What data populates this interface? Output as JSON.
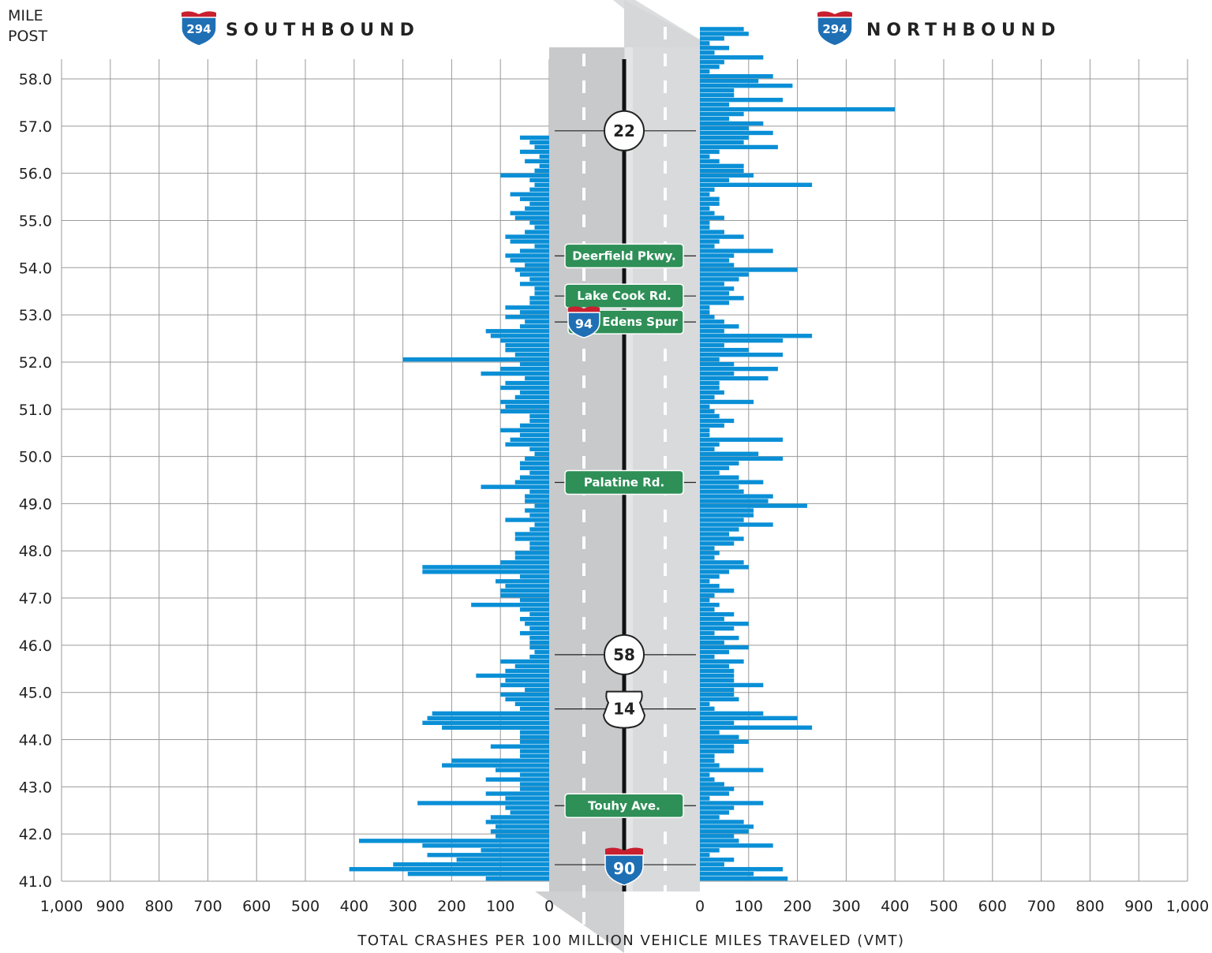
{
  "header": {
    "mile_post_line1": "MILE",
    "mile_post_line2": "POST",
    "southbound_shield": "294",
    "southbound_label": "SOUTHBOUND",
    "northbound_shield": "294",
    "northbound_label": "NORTHBOUND"
  },
  "colors": {
    "bar": "#0a8fd6",
    "road": "#c8c9cb",
    "sign_green": "#2e8f57",
    "shield_blue": "#1f6fb5",
    "shield_red": "#c8202f",
    "grid": "#9a9a9a"
  },
  "chart_data": {
    "type": "bar",
    "orientation": "horizontal",
    "xlabel": "TOTAL CRASHES PER 100 MILLION VEHICLE MILES TRAVELED (VMT)",
    "ylabel": "MILE POST",
    "ylim": [
      41.0,
      58.0
    ],
    "xlim": [
      0,
      1000
    ],
    "y_ticks": [
      "58.0",
      "57.0",
      "56.0",
      "55.0",
      "54.0",
      "53.0",
      "52.0",
      "51.0",
      "50.0",
      "49.0",
      "48.0",
      "47.0",
      "46.0",
      "45.0",
      "44.0",
      "43.0",
      "42.0",
      "41.0"
    ],
    "x_ticks_southbound": [
      "1,000",
      "900",
      "800",
      "700",
      "600",
      "500",
      "400",
      "300",
      "200",
      "100",
      "0"
    ],
    "x_ticks_northbound": [
      "0",
      "100",
      "200",
      "300",
      "400",
      "500",
      "600",
      "700",
      "800",
      "900",
      "1,000"
    ],
    "bin_size_miles": 0.1,
    "series": [
      {
        "name": "SOUTHBOUND",
        "mile_start": 41.0,
        "values": [
          130,
          290,
          410,
          320,
          190,
          250,
          140,
          260,
          390,
          110,
          120,
          110,
          130,
          120,
          80,
          90,
          270,
          90,
          130,
          60,
          60,
          130,
          60,
          110,
          220,
          200,
          60,
          60,
          120,
          60,
          60,
          60,
          220,
          260,
          250,
          240,
          60,
          70,
          90,
          100,
          50,
          100,
          90,
          150,
          90,
          70,
          100,
          40,
          30,
          40,
          40,
          40,
          60,
          40,
          50,
          60,
          40,
          60,
          160,
          60,
          100,
          100,
          90,
          110,
          60,
          260,
          260,
          100,
          70,
          70,
          40,
          40,
          70,
          70,
          40,
          30,
          90,
          40,
          50,
          30,
          50,
          50,
          40,
          140,
          70,
          60,
          40,
          60,
          60,
          50,
          30,
          40,
          90,
          80,
          60,
          100,
          60,
          40,
          40,
          100,
          90,
          100,
          70,
          60,
          100,
          90,
          50,
          140,
          100,
          60,
          300,
          70,
          90,
          90,
          100,
          120,
          130,
          60,
          50,
          90,
          60,
          90,
          40,
          40,
          30,
          30,
          60,
          40,
          60,
          70,
          50,
          80,
          90,
          60,
          30,
          80,
          90,
          50,
          30,
          40,
          70,
          80,
          50,
          40,
          60,
          80,
          40,
          30,
          40,
          100,
          30,
          20,
          50,
          20,
          60,
          30,
          40,
          60
        ]
      },
      {
        "name": "NORTHBOUND",
        "mile_start": 41.0,
        "values": [
          180,
          110,
          170,
          50,
          70,
          20,
          40,
          150,
          80,
          70,
          100,
          110,
          90,
          40,
          60,
          70,
          130,
          20,
          60,
          70,
          50,
          30,
          20,
          130,
          40,
          30,
          30,
          70,
          70,
          100,
          80,
          40,
          230,
          70,
          200,
          130,
          30,
          20,
          80,
          70,
          70,
          130,
          70,
          70,
          70,
          60,
          90,
          30,
          60,
          100,
          50,
          80,
          30,
          70,
          100,
          50,
          70,
          30,
          40,
          20,
          30,
          70,
          40,
          20,
          40,
          60,
          100,
          90,
          30,
          40,
          30,
          70,
          90,
          60,
          80,
          150,
          90,
          110,
          110,
          220,
          140,
          150,
          90,
          80,
          130,
          80,
          40,
          60,
          80,
          170,
          120,
          30,
          40,
          170,
          20,
          20,
          50,
          70,
          40,
          30,
          20,
          110,
          30,
          50,
          40,
          40,
          140,
          70,
          160,
          70,
          40,
          170,
          100,
          50,
          170,
          230,
          50,
          80,
          50,
          30,
          20,
          20,
          60,
          90,
          60,
          70,
          50,
          80,
          100,
          200,
          70,
          60,
          70,
          150,
          30,
          40,
          90,
          50,
          20,
          20,
          50,
          30,
          20,
          40,
          40,
          20,
          30,
          230,
          60,
          110,
          90,
          90,
          40,
          20,
          40,
          160,
          90,
          100,
          150,
          100,
          130,
          60,
          90,
          400,
          60,
          170,
          70,
          70,
          190,
          120,
          150,
          20,
          40,
          50,
          130,
          30,
          60,
          20,
          50,
          100,
          90
        ]
      }
    ]
  },
  "road": {
    "markers": [
      {
        "kind": "route-circle",
        "label": "22",
        "mile": 56.9
      },
      {
        "kind": "sign",
        "label": "Deerfield Pkwy.",
        "mile": 54.25
      },
      {
        "kind": "sign",
        "label": "Lake Cook Rd.",
        "mile": 53.4
      },
      {
        "kind": "sign-shield",
        "label": "Edens Spur",
        "shield": "94",
        "mile": 52.85
      },
      {
        "kind": "sign",
        "label": "Palatine Rd.",
        "mile": 49.45
      },
      {
        "kind": "route-circle",
        "label": "58",
        "mile": 45.8
      },
      {
        "kind": "us-route",
        "label": "14",
        "mile": 44.65
      },
      {
        "kind": "sign",
        "label": "Touhy Ave.",
        "mile": 42.6
      },
      {
        "kind": "interstate",
        "label": "90",
        "mile": 41.35
      }
    ]
  }
}
